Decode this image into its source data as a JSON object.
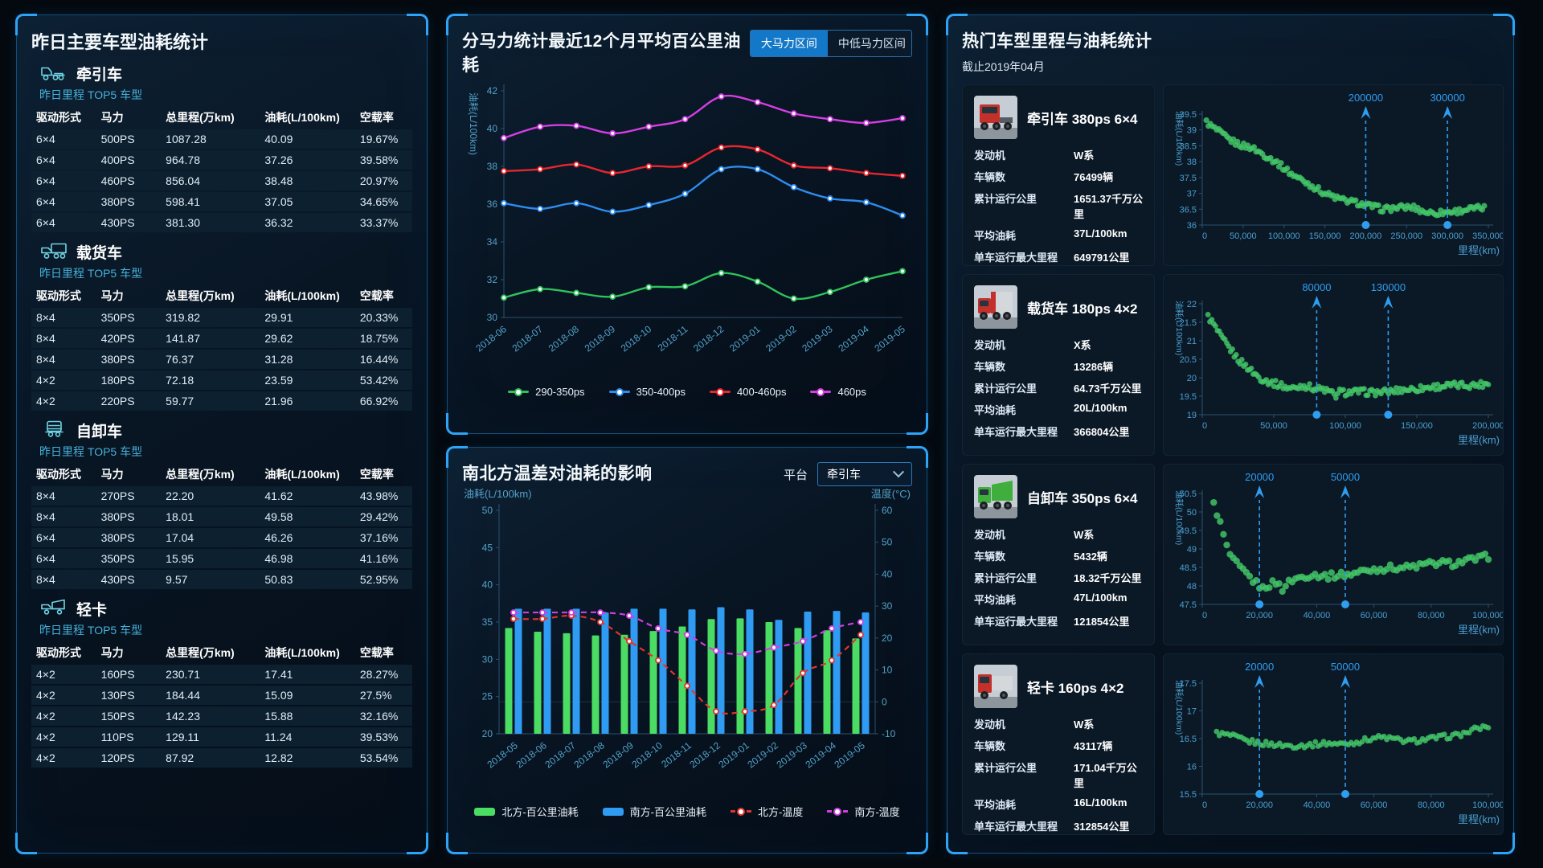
{
  "theme": {
    "accent_blue": "#2196f3",
    "panel_border": "#10507f",
    "cyan_text": "#45b1da",
    "series_green": "#2fc25b",
    "series_blue": "#2d8cf0",
    "series_red": "#e8262d",
    "series_magenta": "#d53ee3",
    "bar_green": "#4adc63",
    "bar_blue": "#2f9bf2",
    "scatter_green": "#43c768",
    "annotation_blue": "#2f9df0"
  },
  "left_panel": {
    "title": "昨日主要车型油耗统计",
    "top5_label": "昨日里程 TOP5 车型",
    "headers": [
      "驱动形式",
      "马力",
      "总里程(万km)",
      "油耗(L/100km)",
      "空载率"
    ],
    "sections": [
      {
        "name": "牵引车",
        "icon": "tractor-truck-icon",
        "rows": [
          [
            "6×4",
            "500PS",
            "1087.28",
            "40.09",
            "19.67%"
          ],
          [
            "6×4",
            "400PS",
            "964.78",
            "37.26",
            "39.58%"
          ],
          [
            "6×4",
            "460PS",
            "856.04",
            "38.48",
            "20.97%"
          ],
          [
            "6×4",
            "380PS",
            "598.41",
            "37.05",
            "34.65%"
          ],
          [
            "6×4",
            "430PS",
            "381.30",
            "36.32",
            "33.37%"
          ]
        ]
      },
      {
        "name": "载货车",
        "icon": "cargo-truck-icon",
        "rows": [
          [
            "8×4",
            "350PS",
            "319.82",
            "29.91",
            "20.33%"
          ],
          [
            "8×4",
            "420PS",
            "141.87",
            "29.62",
            "18.75%"
          ],
          [
            "8×4",
            "380PS",
            "76.37",
            "31.28",
            "16.44%"
          ],
          [
            "4×2",
            "180PS",
            "72.18",
            "23.59",
            "53.42%"
          ],
          [
            "4×2",
            "220PS",
            "59.77",
            "21.96",
            "66.92%"
          ]
        ]
      },
      {
        "name": "自卸车",
        "icon": "dump-truck-icon",
        "rows": [
          [
            "8×4",
            "270PS",
            "22.20",
            "41.62",
            "43.98%"
          ],
          [
            "8×4",
            "380PS",
            "18.01",
            "49.58",
            "29.42%"
          ],
          [
            "6×4",
            "380PS",
            "17.04",
            "46.26",
            "37.16%"
          ],
          [
            "6×4",
            "350PS",
            "15.95",
            "46.98",
            "41.16%"
          ],
          [
            "8×4",
            "430PS",
            "9.57",
            "50.83",
            "52.95%"
          ]
        ]
      },
      {
        "name": "轻卡",
        "icon": "light-truck-icon",
        "rows": [
          [
            "4×2",
            "160PS",
            "230.71",
            "17.41",
            "28.27%"
          ],
          [
            "4×2",
            "130PS",
            "184.44",
            "15.09",
            "27.5%"
          ],
          [
            "4×2",
            "150PS",
            "142.23",
            "15.88",
            "32.16%"
          ],
          [
            "4×2",
            "110PS",
            "129.11",
            "11.24",
            "39.53%"
          ],
          [
            "4×2",
            "120PS",
            "87.92",
            "12.82",
            "53.54%"
          ]
        ]
      }
    ]
  },
  "horsepower_panel": {
    "title": "分马力统计最近12个月平均百公里油耗",
    "buttons": [
      {
        "label": "大马力区间",
        "active": true
      },
      {
        "label": "中低马力区间",
        "active": false
      }
    ]
  },
  "temperature_panel": {
    "title": "南北方温差对油耗的影响",
    "platform_label": "平台",
    "platform_value": "牵引车"
  },
  "hot_models_panel": {
    "title": "热门车型里程与油耗统计",
    "as_of": "截止2019年04月",
    "info_labels": {
      "engine": "发动机",
      "count": "车辆数",
      "total": "累计运行公里",
      "avg": "平均油耗",
      "max": "单车运行最大里程"
    },
    "cards": [
      {
        "title": "牵引车 380ps 6×4",
        "engine": "W系",
        "count": "76499辆",
        "total": "1651.37千万公里",
        "avg": "37L/100km",
        "max": "649791公里",
        "photo": "tractor",
        "photo_color": "#c4312b"
      },
      {
        "title": "载货车 180ps 4×2",
        "engine": "X系",
        "count": "13286辆",
        "total": "64.73千万公里",
        "avg": "20L/100km",
        "max": "366804公里",
        "photo": "box",
        "photo_color": "#c4312b"
      },
      {
        "title": "自卸车 350ps 6×4",
        "engine": "W系",
        "count": "5432辆",
        "total": "18.32千万公里",
        "avg": "47L/100km",
        "max": "121854公里",
        "photo": "dump",
        "photo_color": "#3fae3c"
      },
      {
        "title": "轻卡 160ps 4×2",
        "engine": "W系",
        "count": "43117辆",
        "total": "171.04千万公里",
        "avg": "16L/100km",
        "max": "312854公里",
        "photo": "light",
        "photo_color": "#c4312b"
      }
    ]
  },
  "chart_data": [
    {
      "id": "hp_trend",
      "type": "line",
      "title": "分马力统计最近12个月平均百公里油耗",
      "ylabel": "油耗(L/100km)",
      "ylim": [
        30,
        42
      ],
      "ytick_step": 2,
      "grid": false,
      "legend_position": "bottom",
      "x": [
        "2018-06",
        "2018-07",
        "2018-08",
        "2018-09",
        "2018-10",
        "2018-11",
        "2018-12",
        "2019-01",
        "2019-02",
        "2019-03",
        "2019-04",
        "2019-05"
      ],
      "series": [
        {
          "name": "290-350ps",
          "color": "#2fc25b",
          "values": [
            31.05,
            31.5,
            31.3,
            31.1,
            31.6,
            31.65,
            32.35,
            31.9,
            31.0,
            31.35,
            32.0,
            32.45
          ]
        },
        {
          "name": "350-400ps",
          "color": "#2d8cf0",
          "values": [
            36.05,
            35.75,
            36.05,
            35.6,
            35.95,
            36.55,
            37.85,
            37.85,
            36.9,
            36.3,
            36.1,
            35.4
          ]
        },
        {
          "name": "400-460ps",
          "color": "#e8262d",
          "values": [
            37.75,
            37.85,
            38.1,
            37.65,
            38.0,
            38.05,
            39.0,
            38.9,
            38.05,
            37.9,
            37.65,
            37.5
          ]
        },
        {
          "name": "460ps",
          "color": "#d53ee3",
          "values": [
            39.5,
            40.1,
            40.15,
            39.75,
            40.1,
            40.5,
            41.7,
            41.4,
            40.8,
            40.5,
            40.3,
            40.55
          ]
        }
      ]
    },
    {
      "id": "north_south",
      "type": "bar-line",
      "title": "南北方温差对油耗的影响",
      "legend_position": "bottom",
      "x": [
        "2018-05",
        "2018-06",
        "2018-07",
        "2018-08",
        "2018-09",
        "2018-10",
        "2018-11",
        "2018-12",
        "2019-01",
        "2019-02",
        "2019-03",
        "2019-04",
        "2019-05"
      ],
      "left_axis": {
        "label": "油耗(L/100km)",
        "min": 20,
        "max": 50,
        "step": 5
      },
      "right_axis": {
        "label": "温度(°C)",
        "min": -10,
        "max": 60,
        "step": 10
      },
      "bar_series": [
        {
          "name": "北方-百公里油耗",
          "color": "#4adc63",
          "axis": "left",
          "values": [
            34.2,
            33.7,
            33.5,
            33.2,
            33.3,
            33.8,
            34.4,
            35.4,
            35.5,
            35.0,
            34.2,
            33.9,
            32.8
          ]
        },
        {
          "name": "南方-百公里油耗",
          "color": "#2f9bf2",
          "axis": "left",
          "values": [
            36.8,
            36.8,
            36.8,
            36.3,
            36.8,
            36.8,
            36.7,
            37.0,
            36.7,
            35.3,
            36.4,
            36.5,
            36.3
          ]
        }
      ],
      "line_series": [
        {
          "name": "北方-温度",
          "color": "#e3342e",
          "axis": "right",
          "values": [
            26,
            26,
            27,
            25,
            19,
            13,
            5,
            -3,
            -3,
            -1,
            9,
            13,
            21
          ]
        },
        {
          "name": "南方-温度",
          "color": "#cf3fe0",
          "axis": "right",
          "values": [
            28,
            28,
            28,
            28,
            27,
            23,
            21,
            16,
            15,
            17,
            19,
            23,
            25
          ]
        }
      ]
    },
    {
      "id": "scatter_tractor",
      "type": "scatter",
      "card_title": "牵引车 380ps 6×4",
      "xlabel": "里程(km)",
      "ylabel": "油耗(L/100km)",
      "xlim": [
        0,
        350000
      ],
      "xtick_step": 50000,
      "ylim": [
        36,
        39.5
      ],
      "ytick_step": 0.5,
      "markers": [
        200000,
        300000
      ],
      "n_points": 135,
      "jitter": 0.09,
      "point_r": 3.6,
      "color": "#43c768",
      "anchors": [
        [
          5000,
          39.25
        ],
        [
          12000,
          39.1
        ],
        [
          20000,
          38.95
        ],
        [
          30000,
          38.75
        ],
        [
          40000,
          38.6
        ],
        [
          50000,
          38.5
        ],
        [
          60000,
          38.45
        ],
        [
          70000,
          38.3
        ],
        [
          80000,
          38.15
        ],
        [
          90000,
          38.0
        ],
        [
          100000,
          37.8
        ],
        [
          110000,
          37.6
        ],
        [
          120000,
          37.45
        ],
        [
          130000,
          37.3
        ],
        [
          140000,
          37.15
        ],
        [
          150000,
          37.0
        ],
        [
          160000,
          36.9
        ],
        [
          170000,
          36.8
        ],
        [
          180000,
          36.75
        ],
        [
          190000,
          36.7
        ],
        [
          200000,
          36.62
        ],
        [
          210000,
          36.58
        ],
        [
          220000,
          36.5
        ],
        [
          230000,
          36.52
        ],
        [
          240000,
          36.55
        ],
        [
          250000,
          36.56
        ],
        [
          260000,
          36.55
        ],
        [
          268000,
          36.45
        ],
        [
          275000,
          36.4
        ],
        [
          285000,
          36.38
        ],
        [
          295000,
          36.4
        ],
        [
          305000,
          36.42
        ],
        [
          315000,
          36.45
        ],
        [
          325000,
          36.5
        ],
        [
          335000,
          36.52
        ],
        [
          345000,
          36.55
        ]
      ]
    },
    {
      "id": "scatter_cargo",
      "type": "scatter",
      "card_title": "载货车 180ps 4×2",
      "xlabel": "里程(km)",
      "ylabel": "油耗(L/100km)",
      "xlim": [
        0,
        200000
      ],
      "xtick_step": 50000,
      "ylim": [
        19,
        22
      ],
      "ytick_step": 0.5,
      "markers": [
        80000,
        130000
      ],
      "n_points": 150,
      "jitter": 0.09,
      "point_r": 3.4,
      "color": "#43c768",
      "anchors": [
        [
          4000,
          21.65
        ],
        [
          7000,
          21.5
        ],
        [
          10000,
          21.3
        ],
        [
          13000,
          21.1
        ],
        [
          16000,
          20.95
        ],
        [
          19000,
          20.8
        ],
        [
          22000,
          20.65
        ],
        [
          25000,
          20.5
        ],
        [
          28000,
          20.4
        ],
        [
          31000,
          20.3
        ],
        [
          34000,
          20.2
        ],
        [
          37000,
          20.1
        ],
        [
          40000,
          20.0
        ],
        [
          43000,
          19.95
        ],
        [
          46000,
          19.9
        ],
        [
          50000,
          19.85
        ],
        [
          55000,
          19.8
        ],
        [
          60000,
          19.72
        ],
        [
          65000,
          19.72
        ],
        [
          70000,
          19.8
        ],
        [
          75000,
          19.75
        ],
        [
          80000,
          19.7
        ],
        [
          85000,
          19.68
        ],
        [
          90000,
          19.6
        ],
        [
          93000,
          19.5
        ],
        [
          96000,
          19.62
        ],
        [
          100000,
          19.6
        ],
        [
          110000,
          19.62
        ],
        [
          120000,
          19.6
        ],
        [
          130000,
          19.62
        ],
        [
          140000,
          19.68
        ],
        [
          150000,
          19.7
        ],
        [
          160000,
          19.75
        ],
        [
          170000,
          19.78
        ],
        [
          180000,
          19.8
        ],
        [
          190000,
          19.8
        ],
        [
          200000,
          19.85
        ]
      ]
    },
    {
      "id": "scatter_dump",
      "type": "scatter",
      "card_title": "自卸车 350ps 6×4",
      "xlabel": "里程(km)",
      "ylabel": "油耗(L/100km)",
      "xlim": [
        0,
        100000
      ],
      "xtick_step": 20000,
      "ylim": [
        47.5,
        50.5
      ],
      "ytick_step": 0.5,
      "markers": [
        20000,
        50000
      ],
      "n_points": 85,
      "jitter": 0.09,
      "point_r": 4.2,
      "color": "#43c768",
      "anchors": [
        [
          4000,
          50.2
        ],
        [
          5500,
          49.9
        ],
        [
          7000,
          49.5
        ],
        [
          8000,
          49.2
        ],
        [
          9000,
          48.95
        ],
        [
          10000,
          48.8
        ],
        [
          11000,
          48.65
        ],
        [
          12000,
          48.6
        ],
        [
          13000,
          48.5
        ],
        [
          14000,
          48.4
        ],
        [
          15000,
          48.35
        ],
        [
          16000,
          48.28
        ],
        [
          17000,
          48.2
        ],
        [
          18000,
          48.12
        ],
        [
          19000,
          48.06
        ],
        [
          20000,
          48.0
        ],
        [
          21000,
          47.92
        ],
        [
          22000,
          47.98
        ],
        [
          24000,
          48.05
        ],
        [
          26000,
          48.1
        ],
        [
          28000,
          47.92
        ],
        [
          30000,
          48.08
        ],
        [
          32000,
          48.18
        ],
        [
          34000,
          48.22
        ],
        [
          36000,
          48.28
        ],
        [
          40000,
          48.3
        ],
        [
          44000,
          48.26
        ],
        [
          48000,
          48.3
        ],
        [
          52000,
          48.32
        ],
        [
          56000,
          48.4
        ],
        [
          60000,
          48.45
        ],
        [
          64000,
          48.48
        ],
        [
          68000,
          48.5
        ],
        [
          72000,
          48.5
        ],
        [
          76000,
          48.55
        ],
        [
          80000,
          48.6
        ],
        [
          84000,
          48.62
        ],
        [
          88000,
          48.6
        ],
        [
          92000,
          48.68
        ],
        [
          96000,
          48.72
        ],
        [
          100000,
          48.8
        ]
      ]
    },
    {
      "id": "scatter_light",
      "type": "scatter",
      "card_title": "轻卡 160ps 4×2",
      "xlabel": "里程(km)",
      "ylabel": "油耗(L/100km)",
      "xlim": [
        0,
        100000
      ],
      "xtick_step": 20000,
      "ylim": [
        15.5,
        17.5
      ],
      "ytick_step": 0.5,
      "markers": [
        20000,
        50000
      ],
      "n_points": 100,
      "jitter": 0.045,
      "point_r": 3.4,
      "color": "#43c768",
      "anchors": [
        [
          5000,
          16.6
        ],
        [
          8000,
          16.57
        ],
        [
          10000,
          16.55
        ],
        [
          12000,
          16.52
        ],
        [
          14000,
          16.48
        ],
        [
          16000,
          16.45
        ],
        [
          18000,
          16.44
        ],
        [
          20000,
          16.42
        ],
        [
          24000,
          16.4
        ],
        [
          28000,
          16.38
        ],
        [
          32000,
          16.37
        ],
        [
          36000,
          16.38
        ],
        [
          40000,
          16.4
        ],
        [
          44000,
          16.42
        ],
        [
          48000,
          16.4
        ],
        [
          52000,
          16.42
        ],
        [
          56000,
          16.46
        ],
        [
          60000,
          16.52
        ],
        [
          64000,
          16.52
        ],
        [
          68000,
          16.48
        ],
        [
          72000,
          16.45
        ],
        [
          76000,
          16.47
        ],
        [
          80000,
          16.5
        ],
        [
          84000,
          16.53
        ],
        [
          88000,
          16.55
        ],
        [
          92000,
          16.6
        ],
        [
          96000,
          16.68
        ],
        [
          100000,
          16.72
        ]
      ]
    }
  ]
}
